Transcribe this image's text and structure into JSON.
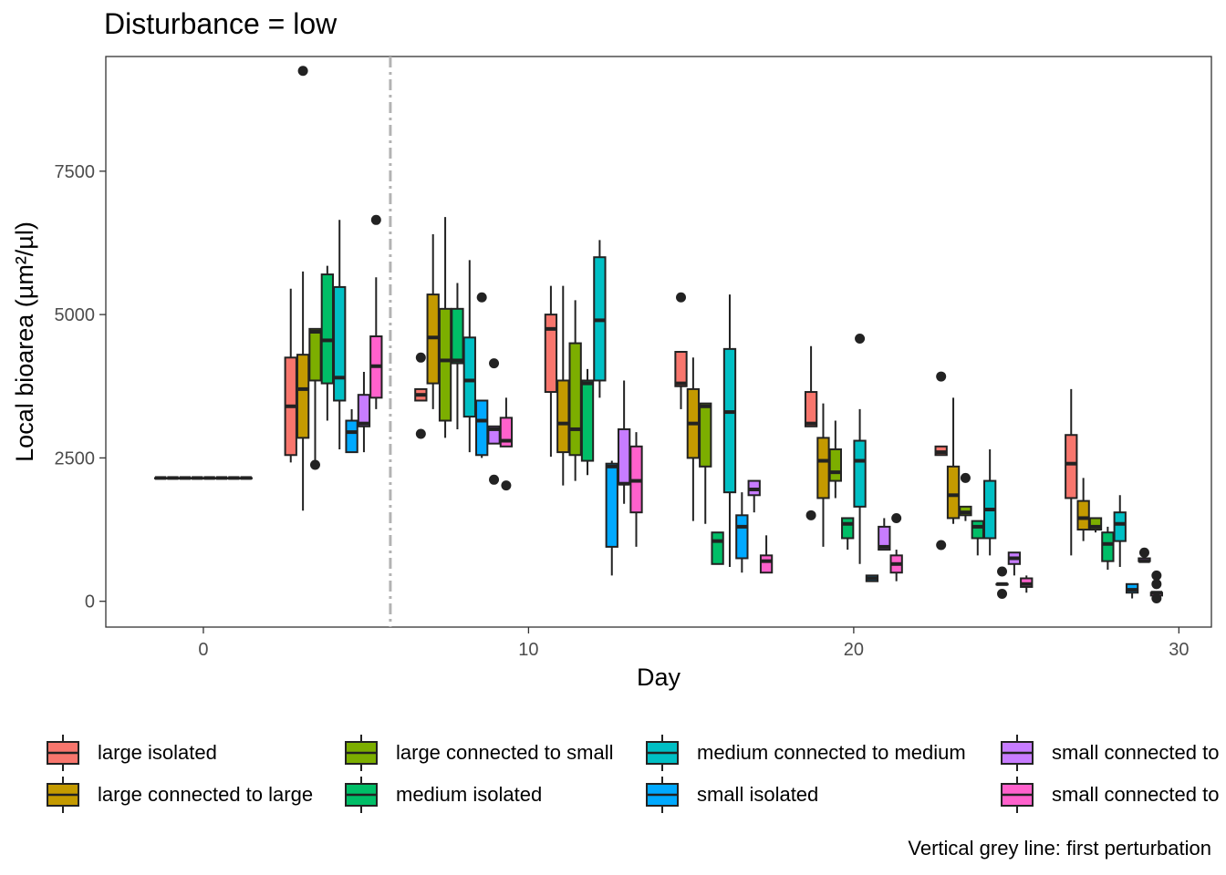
{
  "title": "Disturbance = low",
  "caption": "Vertical grey line: first perturbation",
  "chart_data": {
    "type": "box",
    "title": "Disturbance = low",
    "xlabel": "Day",
    "ylabel": "Local bioarea (µm²/µl)",
    "xlim": [
      -3,
      31
    ],
    "ylim": [
      -450,
      9500
    ],
    "x_ticks": [
      0,
      10,
      20,
      30
    ],
    "y_ticks": [
      0,
      2500,
      5000,
      7500
    ],
    "vline": {
      "x": 5.75,
      "style": "dashdot",
      "color": "#b3b3b3"
    },
    "legend_position": "bottom",
    "groups": [
      {
        "name": "large isolated",
        "color": "#F8766D"
      },
      {
        "name": "large connected to large",
        "color": "#C49A00"
      },
      {
        "name": "large connected to small",
        "color": "#53B400"
      },
      {
        "name": "medium isolated",
        "color": "#00C094"
      },
      {
        "name": "medium connected to medium",
        "color": "#00B6EB"
      },
      {
        "name": "small isolated",
        "color": "#A58AFF"
      },
      {
        "name": "small connected to",
        "color": "#FB61D7"
      },
      {
        "name": "small connected to",
        "color": "#FF61C3"
      }
    ],
    "legend_labels": [
      "large isolated",
      "large connected to large",
      "large connected to small",
      "medium isolated",
      "medium connected to medium",
      "small isolated",
      "small connected to",
      "small connected to"
    ],
    "legend_colors": [
      "#F8766D",
      "#C49A00",
      "#7CAE00",
      "#00BE67",
      "#00BFC4",
      "#00A9FF",
      "#C77CFF",
      "#FF61CC"
    ],
    "boxes": [
      {
        "day": 0,
        "group": 0,
        "min": 2150,
        "q1": 2150,
        "median": 2150,
        "q3": 2150,
        "max": 2150,
        "outliers": []
      },
      {
        "day": 0,
        "group": 1,
        "min": 2150,
        "q1": 2150,
        "median": 2150,
        "q3": 2150,
        "max": 2150,
        "outliers": []
      },
      {
        "day": 0,
        "group": 2,
        "min": 2150,
        "q1": 2150,
        "median": 2150,
        "q3": 2150,
        "max": 2150,
        "outliers": []
      },
      {
        "day": 0,
        "group": 3,
        "min": 2150,
        "q1": 2150,
        "median": 2150,
        "q3": 2150,
        "max": 2150,
        "outliers": []
      },
      {
        "day": 0,
        "group": 4,
        "min": 2150,
        "q1": 2150,
        "median": 2150,
        "q3": 2150,
        "max": 2150,
        "outliers": []
      },
      {
        "day": 0,
        "group": 5,
        "min": 2150,
        "q1": 2150,
        "median": 2150,
        "q3": 2150,
        "max": 2150,
        "outliers": []
      },
      {
        "day": 0,
        "group": 6,
        "min": 2150,
        "q1": 2150,
        "median": 2150,
        "q3": 2150,
        "max": 2150,
        "outliers": []
      },
      {
        "day": 0,
        "group": 7,
        "min": 2150,
        "q1": 2150,
        "median": 2150,
        "q3": 2150,
        "max": 2150,
        "outliers": []
      },
      {
        "day": 4,
        "group": 0,
        "min": 2420,
        "q1": 2550,
        "median": 3400,
        "q3": 4250,
        "max": 5450,
        "outliers": []
      },
      {
        "day": 4,
        "group": 1,
        "min": 1580,
        "q1": 2850,
        "median": 3700,
        "q3": 4300,
        "max": 5750,
        "outliers": [
          9250
        ]
      },
      {
        "day": 4,
        "group": 2,
        "min": 2400,
        "q1": 3850,
        "median": 4700,
        "q3": 4750,
        "max": 4750,
        "outliers": [
          2380
        ]
      },
      {
        "day": 4,
        "group": 3,
        "min": 3150,
        "q1": 3800,
        "median": 4550,
        "q3": 5700,
        "max": 5850,
        "outliers": []
      },
      {
        "day": 4,
        "group": 4,
        "min": 2650,
        "q1": 3500,
        "median": 3900,
        "q3": 5480,
        "max": 6650,
        "outliers": []
      },
      {
        "day": 4,
        "group": 5,
        "min": 2600,
        "q1": 2600,
        "median": 2950,
        "q3": 3150,
        "max": 3350,
        "outliers": []
      },
      {
        "day": 4,
        "group": 6,
        "min": 2600,
        "q1": 3050,
        "median": 3100,
        "q3": 3600,
        "max": 4000,
        "outliers": []
      },
      {
        "day": 4,
        "group": 7,
        "min": 3350,
        "q1": 3550,
        "median": 4100,
        "q3": 4620,
        "max": 5650,
        "outliers": [
          6650
        ]
      },
      {
        "day": 8,
        "group": 0,
        "min": 3500,
        "q1": 3500,
        "median": 3600,
        "q3": 3700,
        "max": 3700,
        "outliers": [
          4250,
          2920
        ]
      },
      {
        "day": 8,
        "group": 1,
        "min": 3350,
        "q1": 3800,
        "median": 4600,
        "q3": 5350,
        "max": 6400,
        "outliers": []
      },
      {
        "day": 8,
        "group": 2,
        "min": 2850,
        "q1": 3150,
        "median": 4200,
        "q3": 5100,
        "max": 6700,
        "outliers": []
      },
      {
        "day": 8,
        "group": 3,
        "min": 3000,
        "q1": 4150,
        "median": 4200,
        "q3": 5100,
        "max": 5550,
        "outliers": []
      },
      {
        "day": 8,
        "group": 4,
        "min": 2600,
        "q1": 3220,
        "median": 3850,
        "q3": 4600,
        "max": 5950,
        "outliers": []
      },
      {
        "day": 8,
        "group": 5,
        "min": 2500,
        "q1": 2550,
        "median": 3150,
        "q3": 3500,
        "max": 3500,
        "outliers": [
          5300
        ]
      },
      {
        "day": 8,
        "group": 6,
        "min": 2750,
        "q1": 2750,
        "median": 3000,
        "q3": 3050,
        "max": 3050,
        "outliers": [
          4150,
          2120
        ]
      },
      {
        "day": 8,
        "group": 7,
        "min": 2700,
        "q1": 2700,
        "median": 2800,
        "q3": 3200,
        "max": 3550,
        "outliers": [
          2020
        ]
      },
      {
        "day": 12,
        "group": 0,
        "min": 2520,
        "q1": 3650,
        "median": 4750,
        "q3": 5000,
        "max": 5500,
        "outliers": []
      },
      {
        "day": 12,
        "group": 1,
        "min": 2020,
        "q1": 2600,
        "median": 3100,
        "q3": 3850,
        "max": 5500,
        "outliers": []
      },
      {
        "day": 12,
        "group": 2,
        "min": 2100,
        "q1": 2550,
        "median": 3000,
        "q3": 4500,
        "max": 5250,
        "outliers": []
      },
      {
        "day": 12,
        "group": 3,
        "min": 2200,
        "q1": 2450,
        "median": 3800,
        "q3": 3850,
        "max": 4050,
        "outliers": []
      },
      {
        "day": 12,
        "group": 4,
        "min": 3550,
        "q1": 3850,
        "median": 4900,
        "q3": 6000,
        "max": 6300,
        "outliers": []
      },
      {
        "day": 12,
        "group": 5,
        "min": 450,
        "q1": 950,
        "median": 2350,
        "q3": 2400,
        "max": 2450,
        "outliers": []
      },
      {
        "day": 12,
        "group": 6,
        "min": 1700,
        "q1": 2050,
        "median": 2050,
        "q3": 3000,
        "max": 3850,
        "outliers": []
      },
      {
        "day": 12,
        "group": 7,
        "min": 950,
        "q1": 1550,
        "median": 2100,
        "q3": 2700,
        "max": 2950,
        "outliers": []
      },
      {
        "day": 16,
        "group": 0,
        "min": 3350,
        "q1": 3750,
        "median": 3800,
        "q3": 4350,
        "max": 4350,
        "outliers": [
          5300
        ]
      },
      {
        "day": 16,
        "group": 1,
        "min": 1400,
        "q1": 2500,
        "median": 3100,
        "q3": 3700,
        "max": 4250,
        "outliers": []
      },
      {
        "day": 16,
        "group": 2,
        "min": 1350,
        "q1": 2350,
        "median": 3400,
        "q3": 3450,
        "max": 3450,
        "outliers": []
      },
      {
        "day": 16,
        "group": 3,
        "min": 650,
        "q1": 650,
        "median": 1050,
        "q3": 1200,
        "max": 1200,
        "outliers": []
      },
      {
        "day": 16,
        "group": 4,
        "min": 600,
        "q1": 1900,
        "median": 3300,
        "q3": 4400,
        "max": 5350,
        "outliers": []
      },
      {
        "day": 16,
        "group": 5,
        "min": 500,
        "q1": 750,
        "median": 1300,
        "q3": 1500,
        "max": 1900,
        "outliers": []
      },
      {
        "day": 16,
        "group": 6,
        "min": 1550,
        "q1": 1850,
        "median": 1950,
        "q3": 2100,
        "max": 2100,
        "outliers": []
      },
      {
        "day": 16,
        "group": 7,
        "min": 500,
        "q1": 500,
        "median": 700,
        "q3": 800,
        "max": 1150,
        "outliers": []
      },
      {
        "day": 20,
        "group": 0,
        "min": 3050,
        "q1": 3050,
        "median": 3100,
        "q3": 3650,
        "max": 4450,
        "outliers": [
          1500
        ]
      },
      {
        "day": 20,
        "group": 1,
        "min": 950,
        "q1": 1800,
        "median": 2450,
        "q3": 2850,
        "max": 3450,
        "outliers": []
      },
      {
        "day": 20,
        "group": 2,
        "min": 1800,
        "q1": 2100,
        "median": 2250,
        "q3": 2650,
        "max": 3150,
        "outliers": []
      },
      {
        "day": 20,
        "group": 3,
        "min": 900,
        "q1": 1100,
        "median": 1350,
        "q3": 1450,
        "max": 1450,
        "outliers": []
      },
      {
        "day": 20,
        "group": 4,
        "min": 650,
        "q1": 1650,
        "median": 2450,
        "q3": 2800,
        "max": 3350,
        "outliers": [
          4580
        ]
      },
      {
        "day": 20,
        "group": 5,
        "min": 350,
        "q1": 350,
        "median": 400,
        "q3": 450,
        "max": 450,
        "outliers": []
      },
      {
        "day": 20,
        "group": 6,
        "min": 900,
        "q1": 900,
        "median": 950,
        "q3": 1300,
        "max": 1450,
        "outliers": []
      },
      {
        "day": 20,
        "group": 7,
        "min": 350,
        "q1": 500,
        "median": 650,
        "q3": 800,
        "max": 900,
        "outliers": [
          1450
        ]
      },
      {
        "day": 24,
        "group": 0,
        "min": 2550,
        "q1": 2550,
        "median": 2600,
        "q3": 2700,
        "max": 2700,
        "outliers": [
          3920,
          980
        ]
      },
      {
        "day": 24,
        "group": 1,
        "min": 1350,
        "q1": 1450,
        "median": 1850,
        "q3": 2350,
        "max": 3550,
        "outliers": []
      },
      {
        "day": 24,
        "group": 2,
        "min": 1400,
        "q1": 1500,
        "median": 1550,
        "q3": 1650,
        "max": 1650,
        "outliers": [
          2150
        ]
      },
      {
        "day": 24,
        "group": 3,
        "min": 800,
        "q1": 1100,
        "median": 1300,
        "q3": 1400,
        "max": 1400,
        "outliers": []
      },
      {
        "day": 24,
        "group": 4,
        "min": 800,
        "q1": 1100,
        "median": 1600,
        "q3": 2100,
        "max": 2650,
        "outliers": []
      },
      {
        "day": 24,
        "group": 5,
        "min": 300,
        "q1": 300,
        "median": 300,
        "q3": 300,
        "max": 300,
        "outliers": [
          520,
          130
        ]
      },
      {
        "day": 24,
        "group": 6,
        "min": 450,
        "q1": 650,
        "median": 750,
        "q3": 850,
        "max": 850,
        "outliers": []
      },
      {
        "day": 24,
        "group": 7,
        "min": 150,
        "q1": 250,
        "median": 300,
        "q3": 400,
        "max": 450,
        "outliers": []
      },
      {
        "day": 28,
        "group": 0,
        "min": 800,
        "q1": 1800,
        "median": 2400,
        "q3": 2900,
        "max": 3700,
        "outliers": []
      },
      {
        "day": 28,
        "group": 1,
        "min": 1050,
        "q1": 1250,
        "median": 1450,
        "q3": 1750,
        "max": 2150,
        "outliers": []
      },
      {
        "day": 28,
        "group": 2,
        "min": 1200,
        "q1": 1250,
        "median": 1300,
        "q3": 1450,
        "max": 1450,
        "outliers": []
      },
      {
        "day": 28,
        "group": 3,
        "min": 550,
        "q1": 700,
        "median": 1000,
        "q3": 1200,
        "max": 1300,
        "outliers": []
      },
      {
        "day": 28,
        "group": 4,
        "min": 600,
        "q1": 1050,
        "median": 1350,
        "q3": 1550,
        "max": 1850,
        "outliers": []
      },
      {
        "day": 28,
        "group": 5,
        "min": 50,
        "q1": 150,
        "median": 200,
        "q3": 300,
        "max": 300,
        "outliers": []
      },
      {
        "day": 28,
        "group": 6,
        "min": 700,
        "q1": 700,
        "median": 700,
        "q3": 750,
        "max": 750,
        "outliers": [
          850
        ]
      },
      {
        "day": 28,
        "group": 7,
        "min": 50,
        "q1": 100,
        "median": 150,
        "q3": 150,
        "max": 150,
        "outliers": [
          300,
          450,
          50
        ]
      }
    ]
  }
}
